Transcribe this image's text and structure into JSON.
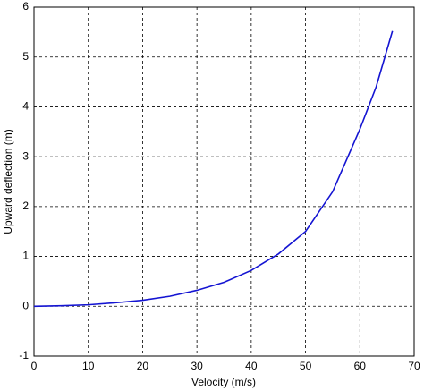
{
  "chart_data": {
    "type": "line",
    "x_label": "Velocity (m/s)",
    "y_label": "Upward deflection (m)",
    "x": [
      0,
      5,
      10,
      15,
      20,
      25,
      30,
      35,
      40,
      45,
      50,
      55,
      60,
      63,
      66
    ],
    "series": [
      {
        "name": "Upward deflection",
        "color": "#1414d2",
        "values": [
          0,
          0.01,
          0.03,
          0.07,
          0.12,
          0.2,
          0.32,
          0.48,
          0.72,
          1.05,
          1.5,
          2.3,
          3.55,
          4.4,
          5.52
        ]
      }
    ],
    "xlim": [
      0,
      70
    ],
    "ylim": [
      -1,
      6
    ],
    "xticks": [
      0,
      10,
      20,
      30,
      40,
      50,
      60,
      70
    ],
    "yticks": [
      -1,
      0,
      1,
      2,
      3,
      4,
      5,
      6
    ],
    "grid": true
  }
}
